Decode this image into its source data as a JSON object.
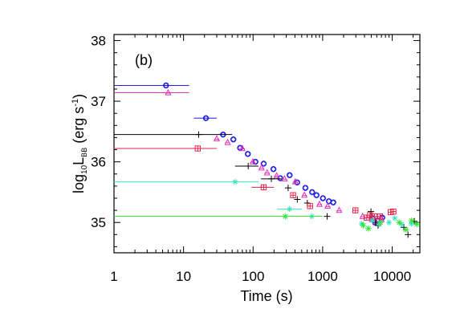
{
  "chart_data": {
    "type": "scatter",
    "panel_label": "(b)",
    "xlabel": "Time (s)",
    "ylabel": {
      "prefix": "log",
      "prefix_sub": "10",
      "main": "L",
      "main_sub": "BB",
      "unit_open": " (erg s",
      "unit_sup": "-1",
      "unit_close": ")"
    },
    "x_scale": "log",
    "xlim": [
      1,
      25000
    ],
    "ylim": [
      34.5,
      38.1
    ],
    "x_ticks": [
      {
        "value": 1,
        "label": "1"
      },
      {
        "value": 10,
        "label": "10"
      },
      {
        "value": 100,
        "label": "100"
      },
      {
        "value": 1000,
        "label": "1000"
      },
      {
        "value": 10000,
        "label": "10000"
      }
    ],
    "y_ticks": [
      {
        "value": 35,
        "label": "35"
      },
      {
        "value": 36,
        "label": "36"
      },
      {
        "value": 37,
        "label": "37"
      },
      {
        "value": 38,
        "label": "38"
      }
    ],
    "grid": false,
    "series": [
      {
        "marker": "diamond-circle",
        "color": "#1f1fe6",
        "points": [
          {
            "x": 5.6,
            "y": 37.26,
            "xerr": [
              1,
              12
            ]
          },
          {
            "x": 21,
            "y": 36.72,
            "xerr": [
              14,
              30
            ]
          },
          {
            "x": 37,
            "y": 36.45
          },
          {
            "x": 52,
            "y": 36.37
          },
          {
            "x": 65,
            "y": 36.23
          },
          {
            "x": 84,
            "y": 36.13
          },
          {
            "x": 108,
            "y": 36.0
          },
          {
            "x": 142,
            "y": 35.97
          },
          {
            "x": 196,
            "y": 35.88
          },
          {
            "x": 246,
            "y": 35.73
          },
          {
            "x": 335,
            "y": 35.78
          },
          {
            "x": 430,
            "y": 35.66
          },
          {
            "x": 565,
            "y": 35.57
          },
          {
            "x": 706,
            "y": 35.5
          },
          {
            "x": 815,
            "y": 35.45
          },
          {
            "x": 1010,
            "y": 35.4
          },
          {
            "x": 1230,
            "y": 35.35
          },
          {
            "x": 1420,
            "y": 35.33
          },
          {
            "x": 5230,
            "y": 35.07
          },
          {
            "x": 5650,
            "y": 35.0
          },
          {
            "x": 6200,
            "y": 35.03
          },
          {
            "x": 7200,
            "y": 35.08
          }
        ]
      },
      {
        "marker": "triangle",
        "color": "#e632b8",
        "points": [
          {
            "x": 6.0,
            "y": 37.14,
            "xerr": [
              1,
              12
            ]
          },
          {
            "x": 30,
            "y": 36.38
          },
          {
            "x": 43,
            "y": 36.32
          },
          {
            "x": 70,
            "y": 36.22
          },
          {
            "x": 99,
            "y": 36.0
          },
          {
            "x": 132,
            "y": 35.9
          },
          {
            "x": 159,
            "y": 35.82
          },
          {
            "x": 218,
            "y": 35.77
          },
          {
            "x": 283,
            "y": 35.72
          },
          {
            "x": 404,
            "y": 35.67
          },
          {
            "x": 546,
            "y": 35.45
          },
          {
            "x": 900,
            "y": 35.3
          },
          {
            "x": 1180,
            "y": 35.27
          },
          {
            "x": 1730,
            "y": 35.2
          },
          {
            "x": 3760,
            "y": 35.1
          },
          {
            "x": 5110,
            "y": 35.05
          },
          {
            "x": 5800,
            "y": 35.02
          },
          {
            "x": 7000,
            "y": 35.05
          }
        ]
      },
      {
        "marker": "plus",
        "color": "#000000",
        "points": [
          {
            "x": 16.5,
            "y": 36.45,
            "xerr": [
              1,
              50
            ]
          },
          {
            "x": 85,
            "y": 35.93,
            "xerr": [
              55,
              120
            ]
          },
          {
            "x": 183,
            "y": 35.72,
            "xerr": [
              130,
              260
            ]
          },
          {
            "x": 319,
            "y": 35.57
          },
          {
            "x": 432,
            "y": 35.38
          },
          {
            "x": 602,
            "y": 35.32
          },
          {
            "x": 1160,
            "y": 35.1
          },
          {
            "x": 4950,
            "y": 35.18
          },
          {
            "x": 5750,
            "y": 35.0
          },
          {
            "x": 6260,
            "y": 34.95
          },
          {
            "x": 14700,
            "y": 34.92
          },
          {
            "x": 16880,
            "y": 34.8
          },
          {
            "x": 20800,
            "y": 35.02
          }
        ]
      },
      {
        "marker": "square-plus",
        "color": "#e6244b",
        "points": [
          {
            "x": 16,
            "y": 36.22,
            "xerr": [
              1,
              30
            ]
          },
          {
            "x": 142,
            "y": 35.58,
            "xerr": [
              95,
              200
            ]
          },
          {
            "x": 376,
            "y": 35.45
          },
          {
            "x": 659,
            "y": 35.27
          },
          {
            "x": 2960,
            "y": 35.2
          },
          {
            "x": 4300,
            "y": 35.08
          },
          {
            "x": 4800,
            "y": 35.12
          },
          {
            "x": 5560,
            "y": 35.1
          },
          {
            "x": 6700,
            "y": 35.1
          },
          {
            "x": 9520,
            "y": 35.17
          },
          {
            "x": 10400,
            "y": 35.18
          }
        ]
      },
      {
        "marker": "star-plus",
        "color": "#32e6c0",
        "points": [
          {
            "x": 55,
            "y": 35.67,
            "xerr": [
              1,
              120
            ]
          },
          {
            "x": 334,
            "y": 35.22,
            "xerr": [
              220,
              500
            ]
          },
          {
            "x": 700,
            "y": 35.1
          },
          {
            "x": 3650,
            "y": 34.98
          },
          {
            "x": 5200,
            "y": 35.03
          },
          {
            "x": 6500,
            "y": 34.97
          },
          {
            "x": 9000,
            "y": 35.0
          },
          {
            "x": 10900,
            "y": 35.07
          },
          {
            "x": 13800,
            "y": 34.97
          },
          {
            "x": 18900,
            "y": 34.98
          }
        ]
      },
      {
        "marker": "asterisk",
        "color": "#2ee62e",
        "points": [
          {
            "x": 290,
            "y": 35.1,
            "xerr": [
              1,
              1000
            ]
          },
          {
            "x": 3840,
            "y": 34.95
          },
          {
            "x": 4550,
            "y": 34.9
          },
          {
            "x": 6800,
            "y": 35.0
          },
          {
            "x": 12600,
            "y": 35.0
          },
          {
            "x": 15800,
            "y": 34.88
          },
          {
            "x": 19000,
            "y": 35.03
          },
          {
            "x": 22500,
            "y": 34.97
          }
        ]
      }
    ]
  }
}
